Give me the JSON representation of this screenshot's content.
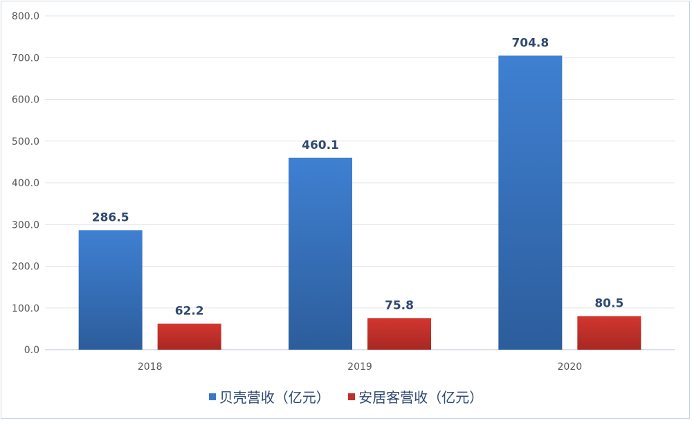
{
  "chart_data": {
    "type": "bar",
    "categories": [
      "2018",
      "2019",
      "2020"
    ],
    "series": [
      {
        "name": "贝壳营收（亿元）",
        "values": [
          286.5,
          460.1,
          704.8
        ],
        "color": "#3a79c9"
      },
      {
        "name": "安居客营收（亿元）",
        "values": [
          62.2,
          75.8,
          80.5
        ],
        "color": "#c0302b"
      }
    ],
    "data_labels": [
      [
        "286.5",
        "460.1",
        "704.8"
      ],
      [
        "62.2",
        "75.8",
        "80.5"
      ]
    ],
    "ylim": [
      0,
      800
    ],
    "yticks": [
      "0.0",
      "100.0",
      "200.0",
      "300.0",
      "400.0",
      "500.0",
      "600.0",
      "700.0",
      "800.0"
    ],
    "grid": true,
    "legend_position": "bottom"
  }
}
